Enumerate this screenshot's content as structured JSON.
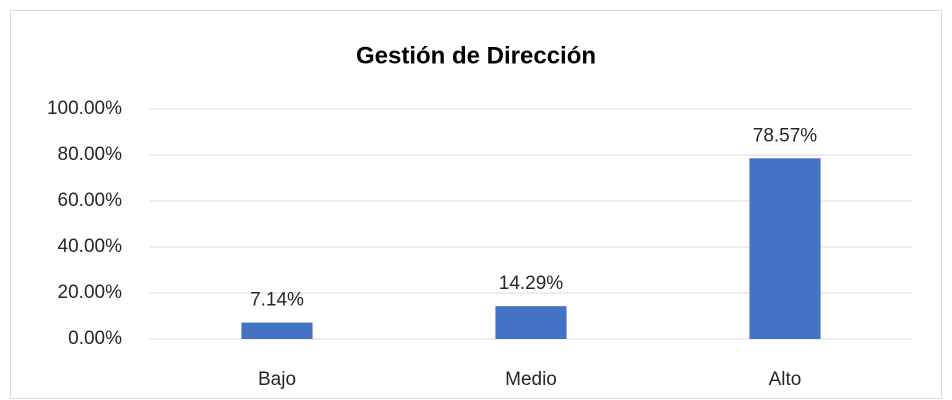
{
  "chart_data": {
    "type": "bar",
    "title": "Gestión de Dirección",
    "categories": [
      "Bajo",
      "Medio",
      "Alto"
    ],
    "values": [
      7.14,
      14.29,
      78.57
    ],
    "value_labels": [
      "7.14%",
      "14.29%",
      "78.57%"
    ],
    "color": "#4472c4",
    "ylim": [
      0,
      100
    ],
    "yticks": [
      {
        "value": 0,
        "label": "0.00%"
      },
      {
        "value": 20,
        "label": "20.00%"
      },
      {
        "value": 40,
        "label": "40.00%"
      },
      {
        "value": 60,
        "label": "60.00%"
      },
      {
        "value": 80,
        "label": "80.00%"
      },
      {
        "value": 100,
        "label": "100.00%"
      }
    ],
    "grid": true
  }
}
